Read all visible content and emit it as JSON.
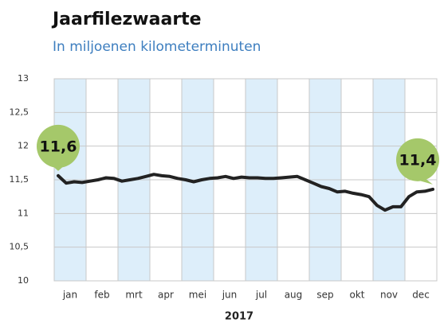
{
  "chart_data": {
    "type": "line",
    "title": "Jaarfilezwaarte",
    "subtitle": "In miljoenen kilometerminuten",
    "xlabel": "2017",
    "categories": [
      "jan",
      null,
      null,
      null,
      "feb",
      null,
      null,
      null,
      "mrt",
      null,
      null,
      null,
      "apr",
      null,
      null,
      null,
      "mei",
      null,
      null,
      null,
      "jun",
      null,
      null,
      null,
      "jul",
      null,
      null,
      null,
      "aug",
      null,
      null,
      null,
      "sep",
      null,
      null,
      null,
      "okt",
      null,
      null,
      null,
      "nov",
      null,
      null,
      null,
      "dec",
      null,
      null,
      null
    ],
    "series": [
      {
        "color": "#222222",
        "values": [
          11.56,
          11.45,
          11.47,
          11.46,
          11.48,
          11.5,
          11.53,
          11.52,
          11.48,
          11.5,
          11.52,
          11.55,
          11.58,
          11.56,
          11.55,
          11.52,
          11.5,
          11.47,
          11.5,
          11.52,
          11.53,
          11.55,
          11.52,
          11.54,
          11.53,
          11.53,
          11.52,
          11.52,
          11.53,
          11.54,
          11.55,
          11.5,
          11.45,
          11.4,
          11.37,
          11.32,
          11.33,
          11.3,
          11.28,
          11.25,
          11.12,
          11.05,
          11.1,
          11.1,
          11.25,
          11.32,
          11.33,
          11.36
        ],
        "value_labels": [
          "11,6",
          null,
          null,
          null,
          null,
          null,
          null,
          null,
          null,
          null,
          null,
          null,
          null,
          null,
          null,
          null,
          null,
          null,
          null,
          null,
          null,
          null,
          null,
          null,
          null,
          null,
          null,
          null,
          null,
          null,
          null,
          null,
          null,
          null,
          null,
          null,
          null,
          null,
          null,
          null,
          null,
          null,
          null,
          null,
          null,
          null,
          null,
          "11,4"
        ]
      }
    ],
    "ylim": [
      10,
      13
    ],
    "yticks": [
      10,
      {
        "value": 10.5,
        "label": "10,5"
      },
      11,
      {
        "value": 11.5,
        "label": "11,5"
      },
      12,
      {
        "value": 12.5,
        "label": "12,5"
      },
      13
    ],
    "grid": true,
    "band_color": "#ddeefa",
    "label_color": "#a5c86a"
  }
}
